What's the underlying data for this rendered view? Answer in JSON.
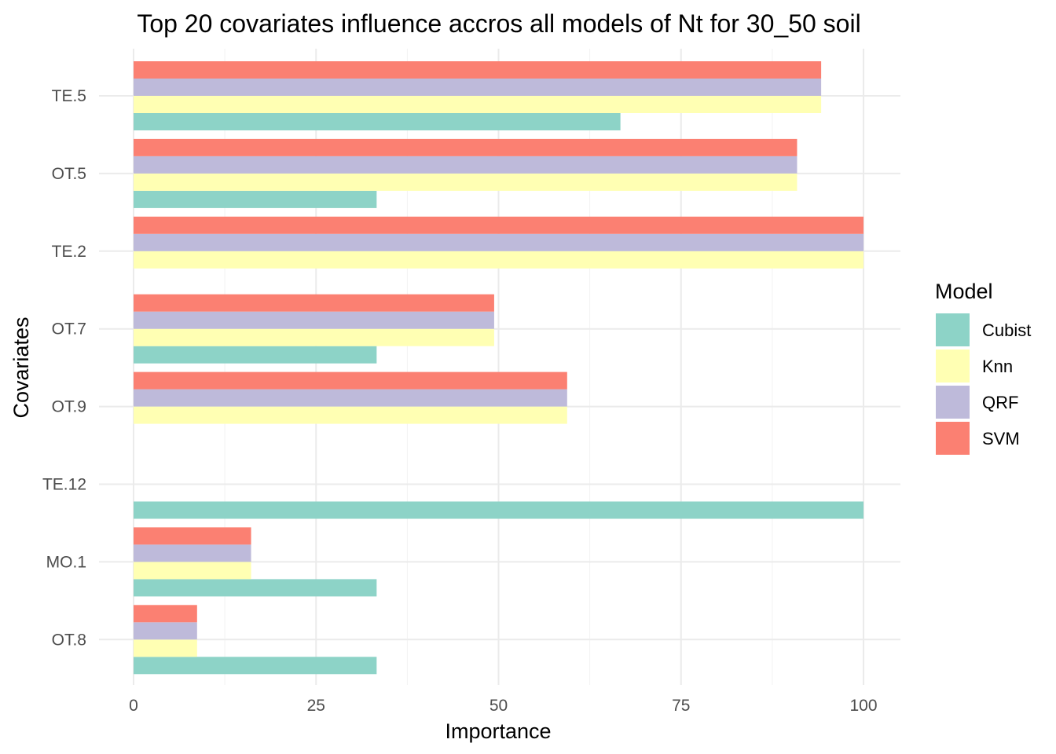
{
  "chart_data": {
    "type": "bar",
    "orientation": "horizontal",
    "title": "Top 20 covariates influence accros all models of Nt for 30_50 soil",
    "xlabel": "Importance",
    "ylabel": "Covariates",
    "xlim": [
      0,
      100
    ],
    "x_ticks": [
      "0",
      "25",
      "50",
      "75",
      "100"
    ],
    "grid": true,
    "categories": [
      "TE.5",
      "OT.5",
      "TE.2",
      "OT.7",
      "OT.9",
      "TE.12",
      "MO.1",
      "OT.8"
    ],
    "series": [
      {
        "name": "Cubist",
        "color": "#8DD3C7",
        "values": [
          66.7,
          33.3,
          0,
          33.3,
          0,
          100,
          33.3,
          33.3
        ]
      },
      {
        "name": "Knn",
        "color": "#FFFFB3",
        "values": [
          94.2,
          90.9,
          100,
          49.4,
          59.4,
          0,
          16.1,
          8.7
        ]
      },
      {
        "name": "QRF",
        "color": "#BEBADA",
        "values": [
          94.2,
          90.9,
          100,
          49.4,
          59.4,
          0,
          16.1,
          8.7
        ]
      },
      {
        "name": "SVM",
        "color": "#FB8072",
        "values": [
          94.2,
          90.9,
          100,
          49.4,
          59.4,
          0,
          16.1,
          8.7
        ]
      }
    ],
    "legend": {
      "title": "Model",
      "position": "right"
    }
  }
}
